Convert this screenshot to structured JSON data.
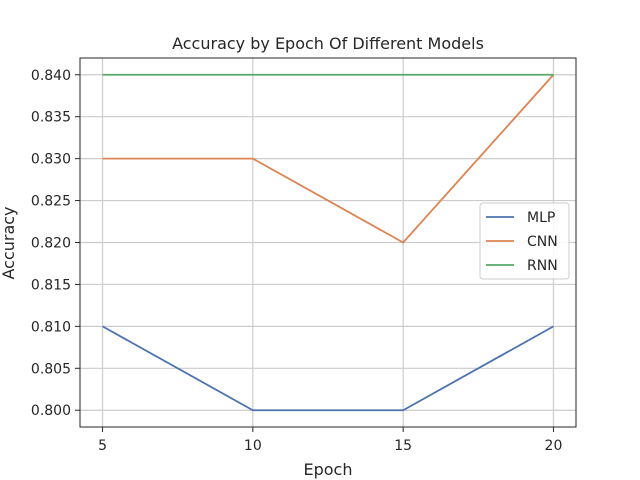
{
  "chart_data": {
    "type": "line",
    "title": "Accuracy by Epoch Of Different Models",
    "xlabel": "Epoch",
    "ylabel": "Accuracy",
    "x": [
      5,
      10,
      15,
      20
    ],
    "xticks": [
      5,
      10,
      15,
      20
    ],
    "yticks": [
      0.8,
      0.805,
      0.81,
      0.815,
      0.82,
      0.825,
      0.83,
      0.835,
      0.84
    ],
    "ytick_labels": [
      "0.800",
      "0.805",
      "0.810",
      "0.815",
      "0.820",
      "0.825",
      "0.830",
      "0.835",
      "0.840"
    ],
    "xlim": [
      4.25,
      20.75
    ],
    "ylim": [
      0.798,
      0.842
    ],
    "grid": true,
    "legend_position": "center-right",
    "series": [
      {
        "name": "MLP",
        "values": [
          0.81,
          0.8,
          0.8,
          0.81
        ],
        "color": "#4c72b0"
      },
      {
        "name": "CNN",
        "values": [
          0.83,
          0.83,
          0.82,
          0.84
        ],
        "color": "#dd8452"
      },
      {
        "name": "RNN",
        "values": [
          0.84,
          0.84,
          0.84,
          0.84
        ],
        "color": "#55a868"
      }
    ]
  }
}
